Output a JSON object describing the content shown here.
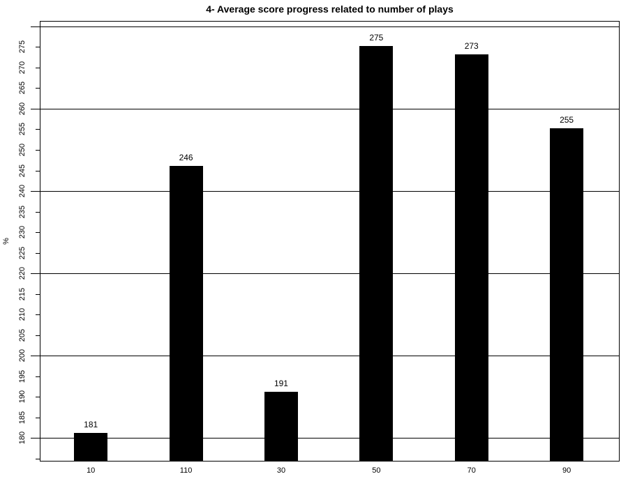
{
  "chart_data": {
    "type": "bar",
    "title": "4- Average score progress related to number of plays",
    "xlabel": "",
    "ylabel": "%",
    "categories": [
      "10",
      "110",
      "30",
      "50",
      "70",
      "90"
    ],
    "values": [
      181,
      246,
      191,
      275,
      273,
      255
    ],
    "value_labels_shown": true,
    "ylim": [
      175,
      280
    ],
    "yticks": {
      "min": 175,
      "max": 280,
      "step": 5,
      "label_min": 180,
      "label_max": 275
    },
    "grid_values": [
      180,
      200,
      220,
      240,
      260,
      280
    ],
    "grid": "horizontal",
    "legend_position": "none",
    "bar_color": "#000000",
    "background_color": "#ffffff",
    "axis_color": "#000000"
  }
}
